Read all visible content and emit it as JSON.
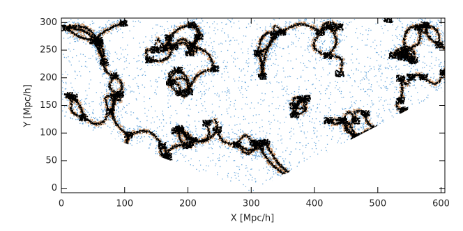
{
  "chart_data": {
    "type": "scatter",
    "xlabel": "X [Mpc/h]",
    "ylabel": "Y [Mpc/h]",
    "xlim": [
      0,
      606
    ],
    "ylim": [
      -8,
      308
    ],
    "xticks": [
      0,
      100,
      200,
      300,
      400,
      500,
      600
    ],
    "yticks": [
      0,
      50,
      100,
      150,
      200,
      250,
      300
    ],
    "colors": [
      "#000000",
      "#c98a55",
      "#6aa8dc"
    ]
  }
}
